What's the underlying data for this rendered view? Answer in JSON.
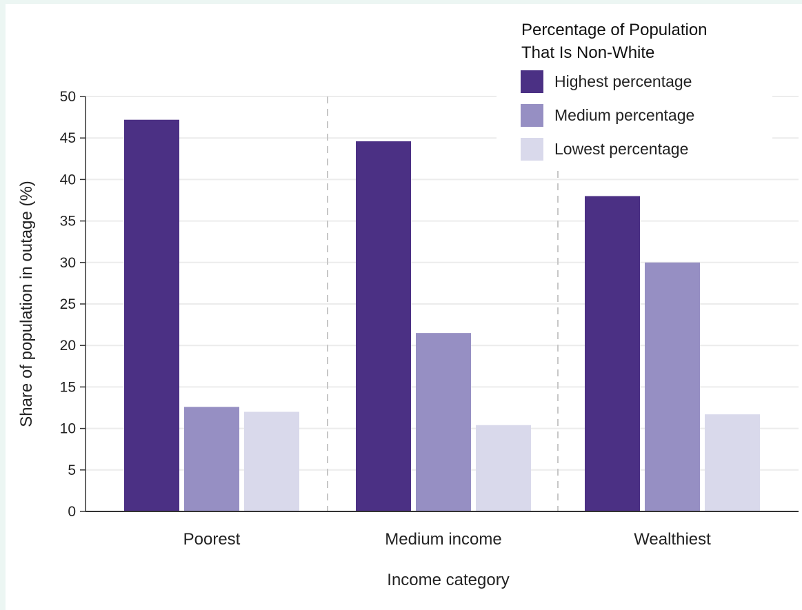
{
  "chart_data": {
    "type": "bar",
    "title": "",
    "xlabel": "Income category",
    "ylabel": "Share of population in outage (%)",
    "ylim": [
      0,
      50
    ],
    "yticks": [
      0,
      5,
      10,
      15,
      20,
      25,
      30,
      35,
      40,
      45,
      50
    ],
    "grid": "horizontal",
    "categories": [
      "Poorest",
      "Medium income",
      "Wealthiest"
    ],
    "legend": {
      "title_line1": "Percentage of Population",
      "title_line2": "That Is Non-White",
      "placement": "top-right"
    },
    "series": [
      {
        "name": "Highest percentage",
        "color": "#4b3084",
        "values": [
          47.2,
          44.6,
          38.0
        ]
      },
      {
        "name": "Medium percentage",
        "color": "#968fc3",
        "values": [
          12.6,
          21.5,
          30.0
        ]
      },
      {
        "name": "Lowest percentage",
        "color": "#d9d9eb",
        "values": [
          12.0,
          10.4,
          11.7
        ]
      }
    ]
  }
}
